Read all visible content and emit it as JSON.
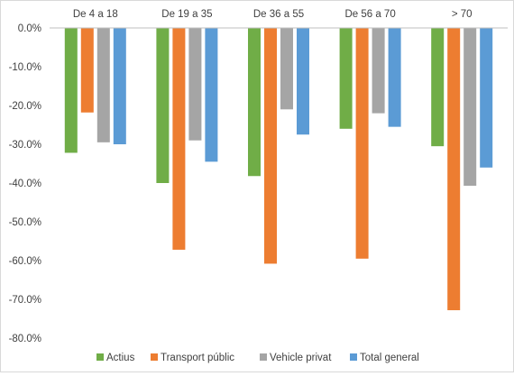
{
  "chart_data": {
    "type": "bar",
    "categories": [
      "De 4 a 18",
      "De 19 a 35",
      "De 36 a 55",
      "De 56 a 70",
      "> 70"
    ],
    "series": [
      {
        "name": "Actius",
        "color": "#70ad47",
        "values": [
          -32.2,
          -40.0,
          -38.2,
          -26.0,
          -30.5
        ]
      },
      {
        "name": "Transport públic",
        "color": "#ed7d31",
        "values": [
          -21.8,
          -57.2,
          -60.8,
          -59.5,
          -72.8
        ]
      },
      {
        "name": "Vehicle privat",
        "color": "#a5a5a5",
        "values": [
          -29.5,
          -29.0,
          -21.0,
          -22.0,
          -40.7
        ]
      },
      {
        "name": "Total general",
        "color": "#5b9bd5",
        "values": [
          -30.0,
          -34.5,
          -27.5,
          -25.5,
          -36.0
        ]
      }
    ],
    "yticks": [
      "0.0%",
      "-10.0%",
      "-20.0%",
      "-30.0%",
      "-40.0%",
      "-50.0%",
      "-60.0%",
      "-70.0%",
      "-80.0%"
    ],
    "ylim": [
      -80,
      0
    ],
    "category_labels_position": "top",
    "legend_position": "bottom",
    "grid": false
  }
}
